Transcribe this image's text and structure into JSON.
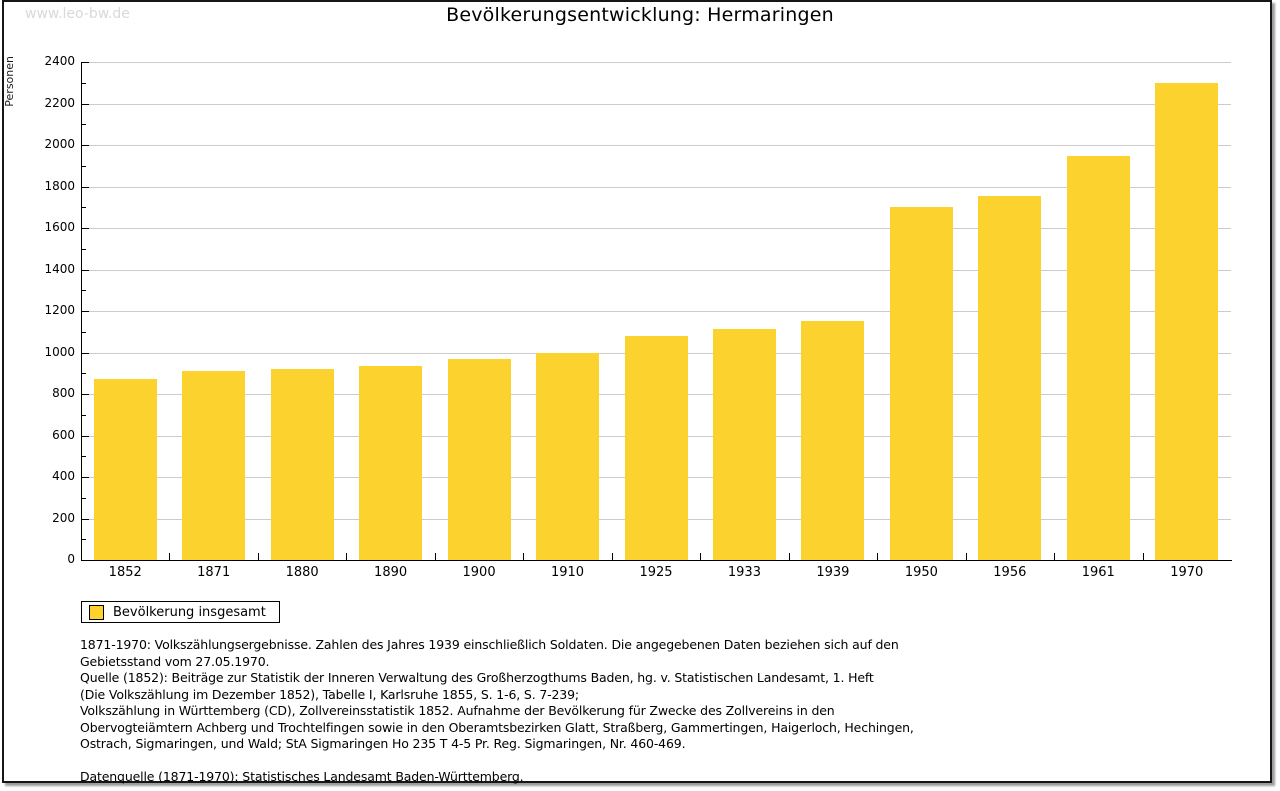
{
  "watermark": "www.leo-bw.de",
  "title": "Bevölkerungsentwicklung: Hermaringen",
  "chart_data": {
    "type": "bar",
    "title": "Bevölkerungsentwicklung: Hermaringen",
    "xlabel": "",
    "ylabel": "Personen",
    "categories": [
      "1852",
      "1871",
      "1880",
      "1890",
      "1900",
      "1910",
      "1925",
      "1933",
      "1939",
      "1950",
      "1956",
      "1961",
      "1970"
    ],
    "values": [
      870,
      910,
      920,
      935,
      970,
      1000,
      1080,
      1115,
      1150,
      1700,
      1755,
      1945,
      2300
    ],
    "ylim": [
      0,
      2400
    ],
    "ytick_step": 200,
    "grid": true,
    "bar_color": "#FCD32E",
    "gridline_color": "#CCCCCC",
    "legend_position": "bottom-left",
    "legend": [
      {
        "label": "Bevölkerung insgesamt",
        "color": "#FCD32E"
      }
    ]
  },
  "footer": {
    "notes": [
      "1871-1970: Volkszählungsergebnisse. Zahlen des Jahres 1939 einschließlich Soldaten. Die angegebenen Daten beziehen sich auf den",
      "Gebietsstand vom 27.05.1970.",
      "Quelle (1852): Beiträge zur Statistik der Inneren Verwaltung des Großherzogthums Baden, hg. v. Statistischen Landesamt, 1. Heft",
      "(Die Volkszählung im Dezember 1852), Tabelle I, Karlsruhe 1855, S. 1-6, S. 7-239;",
      "Volkszählung in Württemberg (CD), Zollvereinsstatistik 1852. Aufnahme der Bevölkerung für Zwecke des Zollvereins in den",
      "Obervogteiämtern Achberg und Trochtelfingen sowie in den Oberamtsbezirken Glatt, Straßberg, Gammertingen, Haigerloch, Hechingen,",
      "Ostrach, Sigmaringen, und Wald; StA Sigmaringen Ho 235 T 4-5 Pr. Reg. Sigmaringen, Nr. 460-469."
    ],
    "datasource": "Datenquelle (1871-1970): Statistisches Landesamt Baden-Württemberg."
  }
}
